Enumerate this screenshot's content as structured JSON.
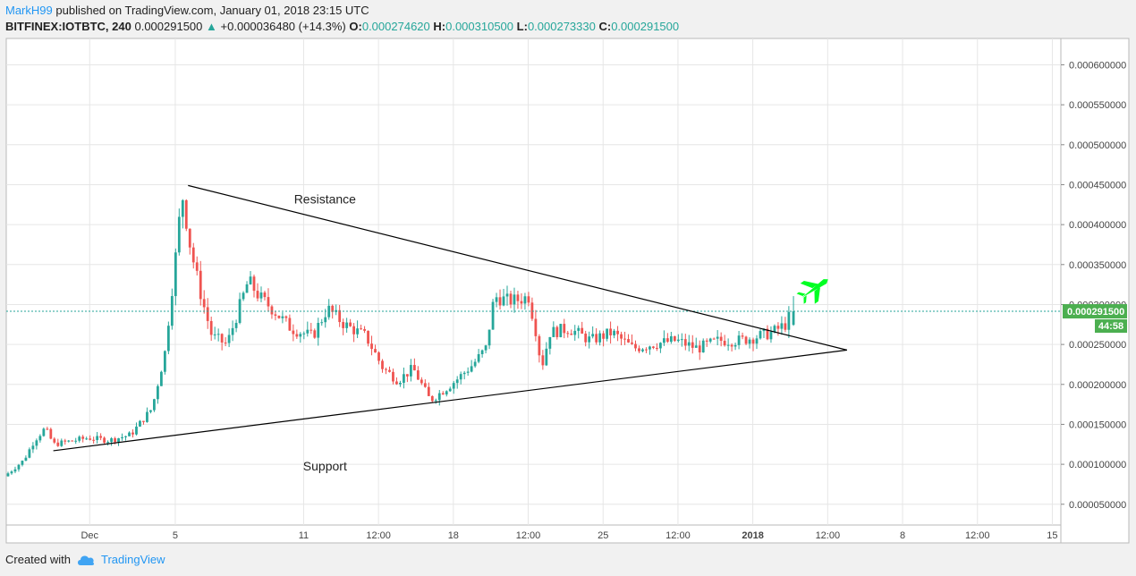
{
  "header": {
    "author": "MarkH99",
    "published": "published on TradingView.com, January 01, 2018 23:15 UTC",
    "symbol": "BITFINEX:IOTBTC, 240",
    "last": "0.000291500",
    "change": "+0.000036480 (+14.3%)",
    "o_label": "O:",
    "o_value": "0.000274620",
    "h_label": "H:",
    "h_value": "0.000310500",
    "l_label": "L:",
    "l_value": "0.000273330",
    "c_label": "C:",
    "c_value": "0.000291500"
  },
  "footer": {
    "created_with": "Created with",
    "brand": "TradingView"
  },
  "colors": {
    "up": "#26a69a",
    "down": "#ef5350",
    "accent": "#26a69a",
    "grid": "#e6e6e6",
    "trendline": "#000000",
    "airplane": "#00ff22",
    "price_label_bg": "#4caf50"
  },
  "chart_data": {
    "type": "candlestick",
    "title": "BITFINEX:IOTBTC, 240",
    "x_tick_labels": [
      "Dec",
      "5",
      "11",
      "12:00",
      "18",
      "12:00",
      "25",
      "12:00",
      "2018",
      "12:00",
      "8",
      "12:00",
      "15"
    ],
    "x_tick_days": [
      1,
      5,
      11,
      14.5,
      18,
      21.5,
      25,
      28.5,
      32,
      35.5,
      39,
      42.5,
      46
    ],
    "y_ticks": [
      5e-05,
      0.0001,
      0.00015,
      0.0002,
      0.00025,
      0.0003,
      0.00035,
      0.0004,
      0.00045,
      0.0005,
      0.00055,
      0.0006
    ],
    "y_tick_labels": [
      "0.000050000",
      "0.000100000",
      "0.000150000",
      "0.000200000",
      "0.000250000",
      "0.000300000",
      "0.000350000",
      "0.000400000",
      "0.000450000",
      "0.000500000",
      "0.000550000",
      "0.000600000"
    ],
    "ylim": [
      2.4e-05,
      0.000633
    ],
    "xlim_days": [
      -2.9,
      46.4
    ],
    "grid": true,
    "last_price": 0.0002915,
    "last_price_label": "0.000291500",
    "countdown_label": "44:58",
    "close_path": [
      [
        -2.9,
        8.5e-05
      ],
      [
        -2.0,
        0.000105
      ],
      [
        -1.5,
        0.00013
      ],
      [
        -1.0,
        0.000145
      ],
      [
        -0.6,
        0.000125
      ],
      [
        0,
        0.000128
      ],
      [
        1,
        0.000133
      ],
      [
        2,
        0.00013
      ],
      [
        3,
        0.000137
      ],
      [
        4,
        0.00017
      ],
      [
        4.6,
        0.00024
      ],
      [
        5.1,
        0.00036
      ],
      [
        5.4,
        0.00044
      ],
      [
        5.8,
        0.00037
      ],
      [
        6.3,
        0.00031
      ],
      [
        6.8,
        0.00026
      ],
      [
        7.5,
        0.00025
      ],
      [
        8,
        0.00029
      ],
      [
        8.5,
        0.00033
      ],
      [
        9,
        0.00031
      ],
      [
        9.6,
        0.000295
      ],
      [
        10.5,
        0.00027
      ],
      [
        11.5,
        0.00026
      ],
      [
        12.2,
        0.000295
      ],
      [
        13,
        0.000275
      ],
      [
        14,
        0.00026
      ],
      [
        14.8,
        0.00022
      ],
      [
        15.5,
        0.000205
      ],
      [
        16.2,
        0.00022
      ],
      [
        17,
        0.00018
      ],
      [
        17.5,
        0.00019
      ],
      [
        18.2,
        0.000205
      ],
      [
        19,
        0.000225
      ],
      [
        19.6,
        0.000245
      ],
      [
        20.0,
        0.00031
      ],
      [
        20.6,
        0.000305
      ],
      [
        21.0,
        0.000305
      ],
      [
        21.6,
        0.00031
      ],
      [
        22.0,
        0.00026
      ],
      [
        22.2,
        0.00022
      ],
      [
        22.6,
        0.000265
      ],
      [
        23.5,
        0.00027
      ],
      [
        24.5,
        0.000255
      ],
      [
        25.5,
        0.000265
      ],
      [
        26.5,
        0.000245
      ],
      [
        27.3,
        0.00025
      ],
      [
        28.5,
        0.000255
      ],
      [
        29.5,
        0.000245
      ],
      [
        30.5,
        0.000255
      ],
      [
        31.5,
        0.000255
      ],
      [
        32.3,
        0.00026
      ],
      [
        33.0,
        0.000265
      ],
      [
        33.6,
        0.000275
      ],
      [
        33.9,
        0.00029
      ]
    ],
    "trendlines": [
      {
        "label": "Resistance",
        "start": [
          5.6,
          0.000449
        ],
        "end": [
          36.4,
          0.000243
        ]
      },
      {
        "label": "Support",
        "start": [
          -0.7,
          0.000117
        ],
        "end": [
          36.4,
          0.000243
        ]
      }
    ]
  }
}
